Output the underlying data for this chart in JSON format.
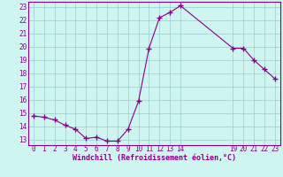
{
  "x": [
    0,
    1,
    2,
    3,
    4,
    5,
    6,
    7,
    8,
    9,
    10,
    11,
    12,
    13,
    14,
    19,
    20,
    21,
    22,
    23
  ],
  "y": [
    14.8,
    14.7,
    14.5,
    14.1,
    13.8,
    13.1,
    13.2,
    12.9,
    12.9,
    13.8,
    15.9,
    19.9,
    22.2,
    22.6,
    23.1,
    19.9,
    19.9,
    19.0,
    18.3,
    17.6
  ],
  "line_color": "#880088",
  "marker": "+",
  "marker_size": 4,
  "bg_color": "#cef5f0",
  "grid_color": "#99cccc",
  "xlabel": "Windchill (Refroidissement éolien,°C)",
  "xlabel_color": "#880088",
  "yticks": [
    13,
    14,
    15,
    16,
    17,
    18,
    19,
    20,
    21,
    22,
    23
  ],
  "xlim": [
    -0.5,
    23.5
  ],
  "ylim": [
    12.6,
    23.4
  ]
}
